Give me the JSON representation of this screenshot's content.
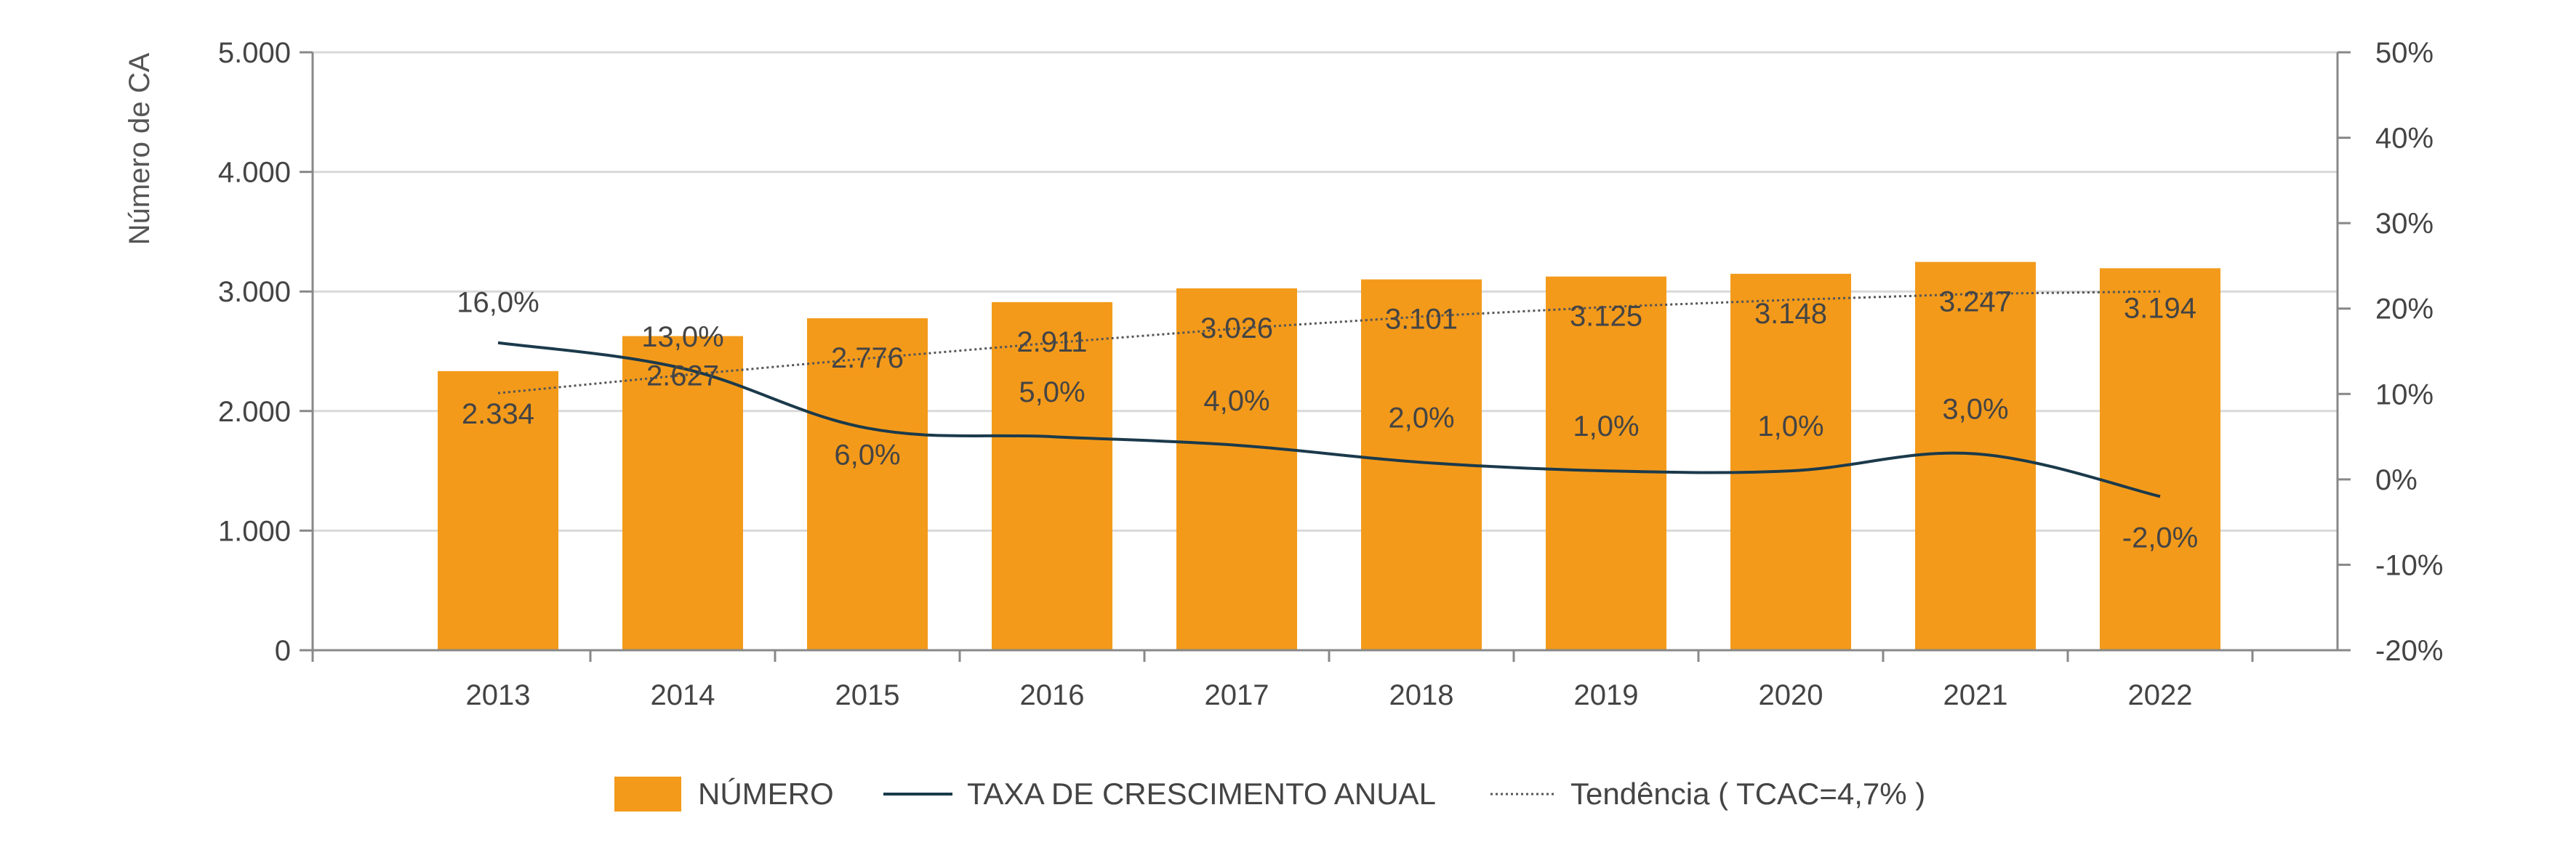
{
  "chart_data": {
    "type": "bar",
    "categories": [
      "2013",
      "2014",
      "2015",
      "2016",
      "2017",
      "2018",
      "2019",
      "2020",
      "2021",
      "2022"
    ],
    "ylabel": "Número de CA",
    "ylim": [
      0,
      5000
    ],
    "y_ticks": [
      "0",
      "1.000",
      "2.000",
      "3.000",
      "4.000",
      "5.000"
    ],
    "y2lim": [
      -20,
      50
    ],
    "y2_ticks": [
      "-20%",
      "-10%",
      "0%",
      "10%",
      "20%",
      "30%",
      "40%",
      "50%"
    ],
    "grid": true,
    "legend_position": "bottom",
    "series": [
      {
        "name": "NÚMERO",
        "type": "bar",
        "axis": "left",
        "color": "#F39A1B",
        "values": [
          2334,
          2627,
          2776,
          2911,
          3026,
          3101,
          3125,
          3148,
          3247,
          3194
        ],
        "labels": [
          "2.334",
          "2.627",
          "2.776",
          "2.911",
          "3.026",
          "3.101",
          "3.125",
          "3.148",
          "3.247",
          "3.194"
        ]
      },
      {
        "name": "TAXA DE CRESCIMENTO ANUAL",
        "type": "line",
        "axis": "right",
        "color": "#1B3A4B",
        "values": [
          16.0,
          13.0,
          6.0,
          5.0,
          4.0,
          2.0,
          1.0,
          1.0,
          3.0,
          -2.0
        ],
        "labels": [
          "16,0%",
          "13,0%",
          "6,0%",
          "5,0%",
          "4,0%",
          "2,0%",
          "1,0%",
          "1,0%",
          "3,0%",
          "-2,0%"
        ]
      },
      {
        "name": "Tendência ( TCAC=4,7% )",
        "type": "line",
        "style": "dotted",
        "axis": "left",
        "color": "#555555",
        "values": [
          2150,
          2300,
          2440,
          2570,
          2690,
          2790,
          2870,
          2930,
          2980,
          3000
        ]
      }
    ]
  }
}
